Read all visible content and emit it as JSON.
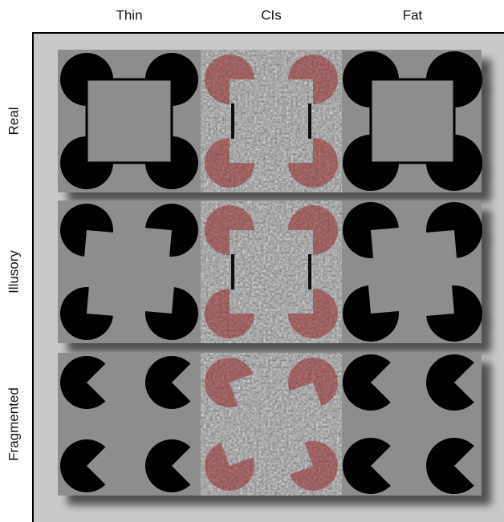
{
  "columns": [
    "Thin",
    "CIs",
    "Fat"
  ],
  "rows": [
    "Real",
    "Illusory",
    "Fragmented"
  ]
}
